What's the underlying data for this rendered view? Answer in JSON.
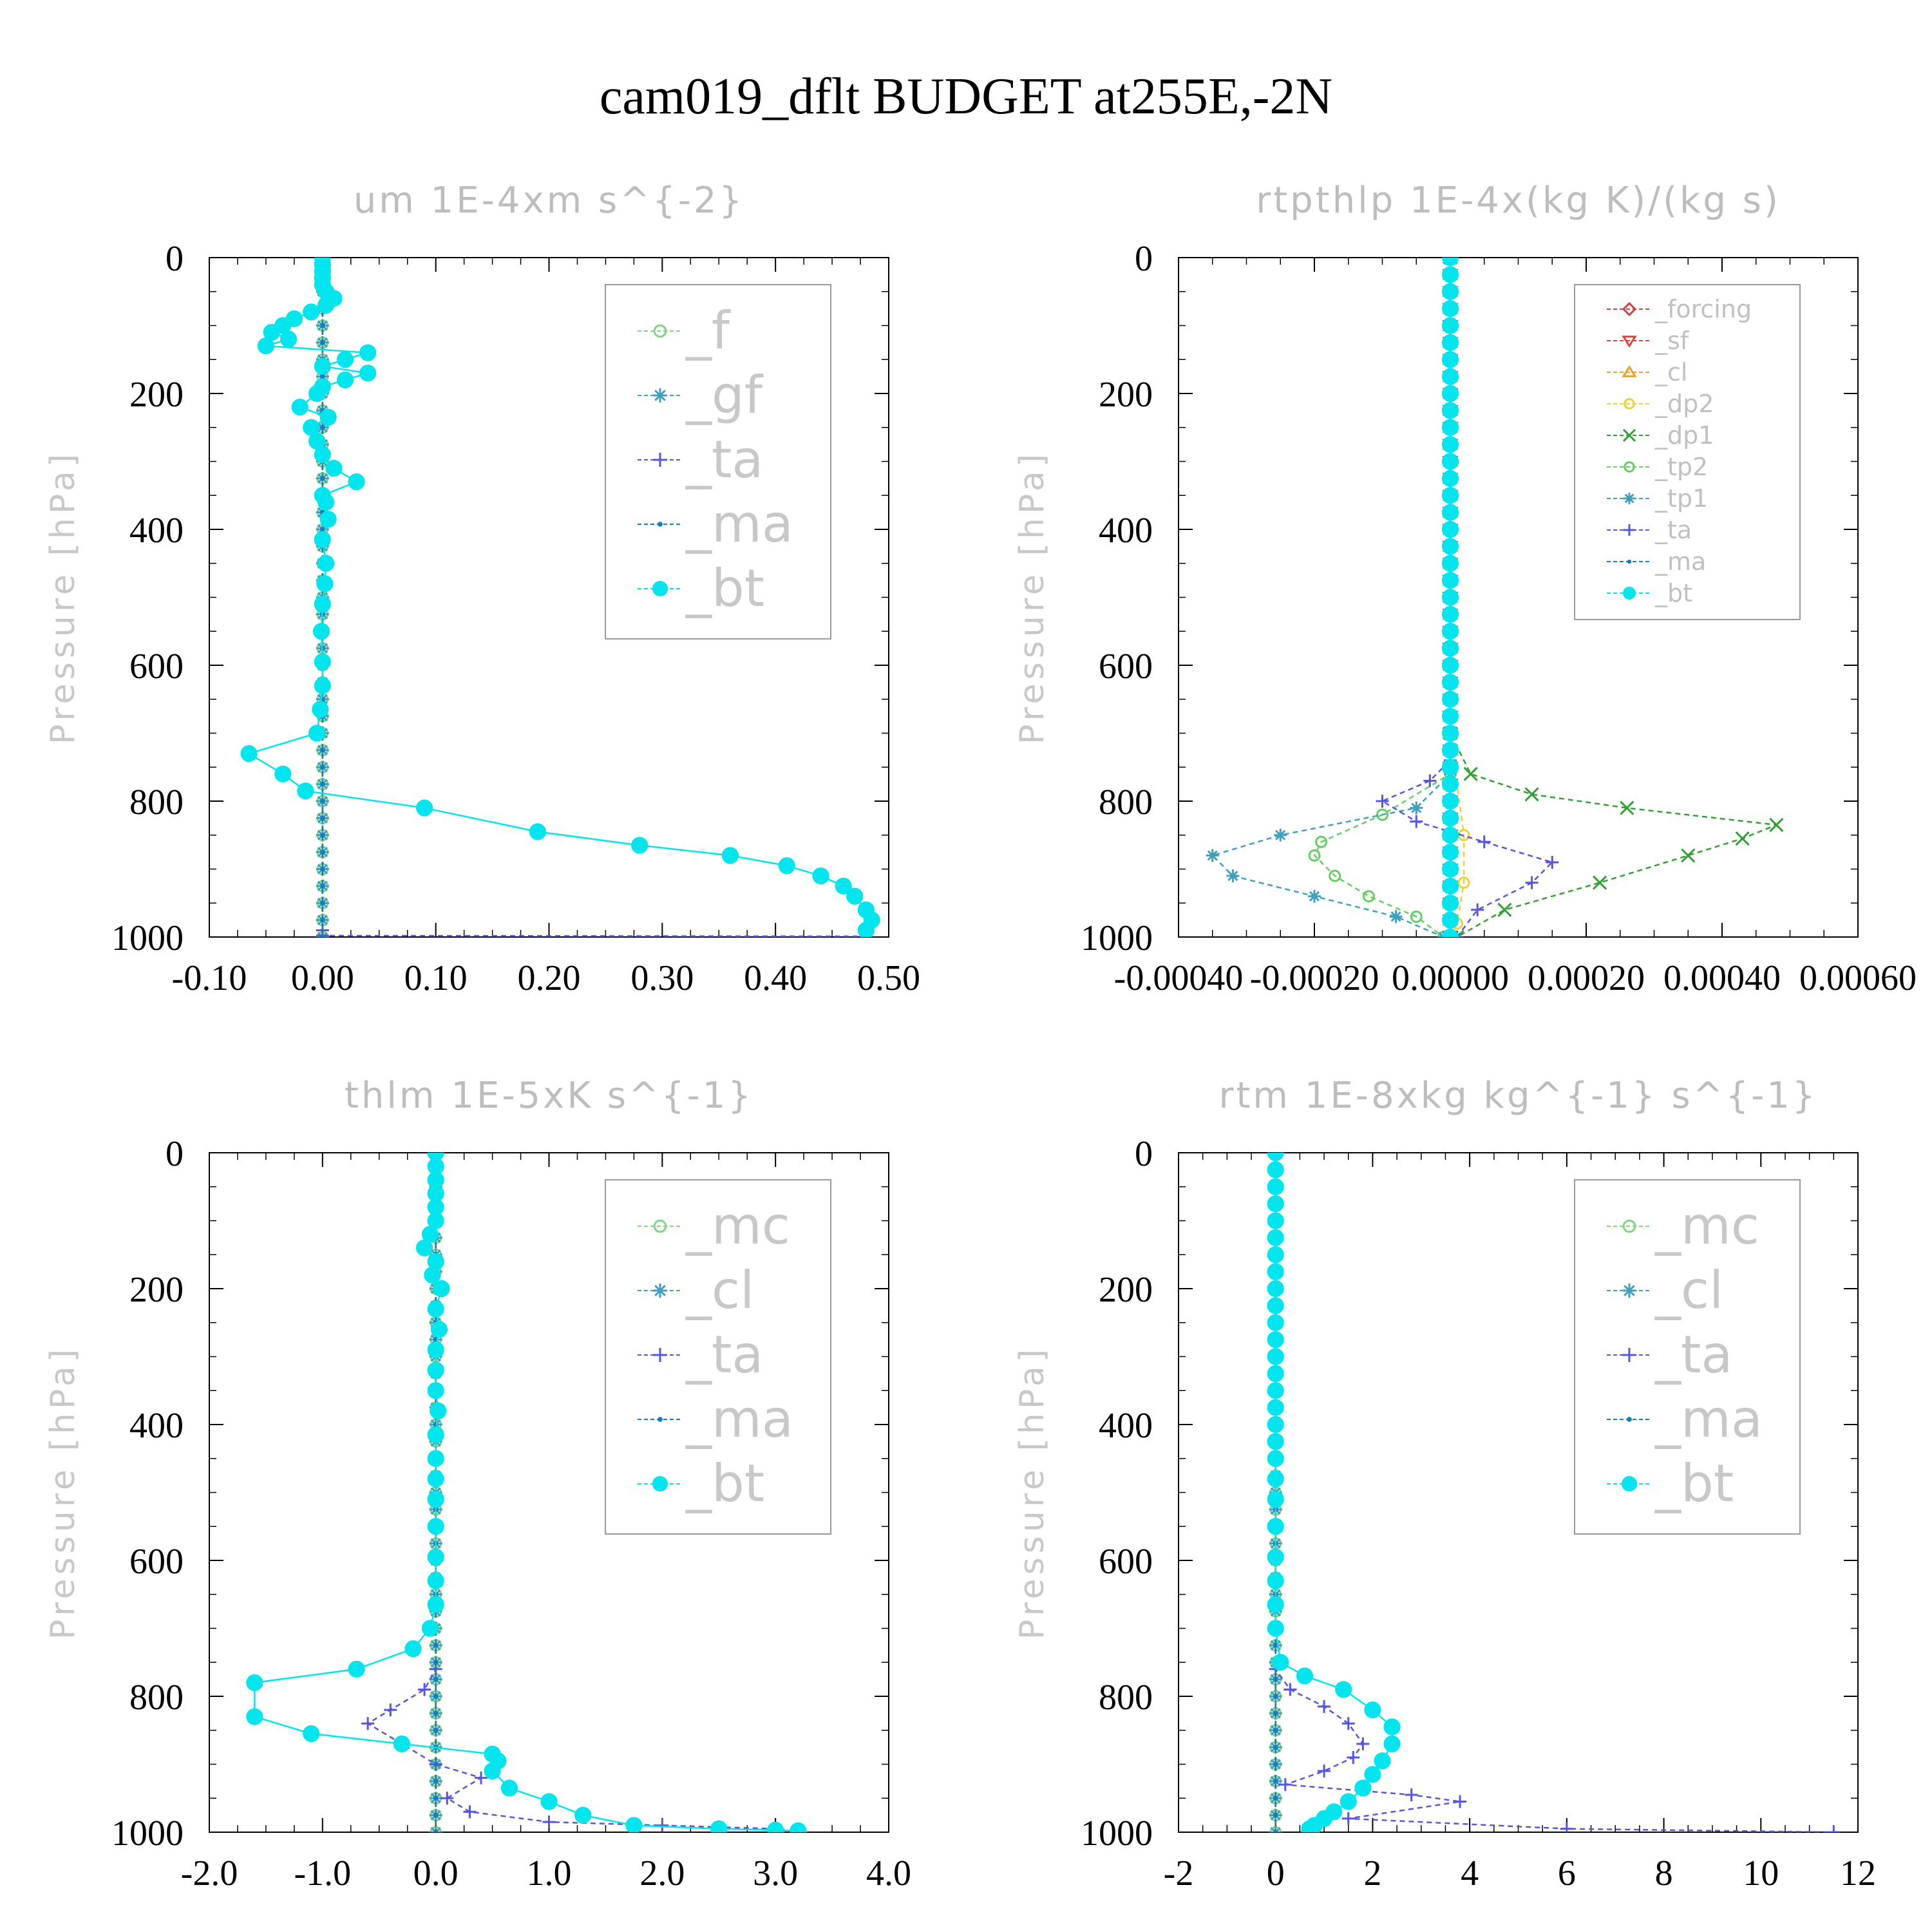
{
  "title": "cam019_dflt  BUDGET at255E,-2N",
  "colors": {
    "f": "#7fd77f",
    "gf": "#3f9fbf",
    "ta": "#5555dd",
    "ma": "#0f7fbf",
    "bt": "#00e5ee",
    "mc": "#7fd77f",
    "cl": "#3f9fbf",
    "forcing": "#d04040",
    "sf": "#e04040",
    "cl2": "#f0a020",
    "dp2": "#f0d030",
    "dp1": "#30a030",
    "tp2": "#60d060",
    "tp1": "#3f9fbf"
  },
  "chart_data": [
    {
      "type": "line",
      "title": "um  1E-4xm s^{-2}",
      "ylabel": "Pressure [hPa]",
      "xlim": [
        -0.1,
        0.5
      ],
      "ylim": [
        1000,
        0
      ],
      "xticks": [
        "-0.10",
        "0.00",
        "0.10",
        "0.20",
        "0.30",
        "0.40",
        "0.50"
      ],
      "yticks": [
        "0",
        "200",
        "400",
        "600",
        "800",
        "1000"
      ],
      "legend_size": "big",
      "legend": [
        "_f",
        "_gf",
        "_ta",
        "_ma",
        "_bt"
      ],
      "series": [
        {
          "name": "_f",
          "key": "f",
          "marker": "circle-open",
          "x": [
            0,
            0
          ],
          "y": [
            0,
            1000
          ]
        },
        {
          "name": "_gf",
          "key": "gf",
          "marker": "star",
          "x": [
            0,
            0
          ],
          "y": [
            0,
            1000
          ]
        },
        {
          "name": "_ta",
          "key": "ta",
          "marker": "plus",
          "x": [
            0,
            0,
            0,
            0.48
          ],
          "y": [
            0,
            990,
            998,
            999
          ]
        },
        {
          "name": "_ma",
          "key": "ma",
          "marker": "dot",
          "x": [
            0,
            0
          ],
          "y": [
            0,
            1000
          ]
        },
        {
          "name": "_bt",
          "key": "bt",
          "marker": "circle-filled",
          "x": [
            0,
            0,
            0,
            0,
            0,
            0.003,
            0.01,
            0.003,
            -0.01,
            -0.025,
            -0.035,
            -0.045,
            -0.03,
            -0.05,
            0.04,
            0.02,
            0.0,
            0.04,
            0.02,
            0.0,
            -0.005,
            -0.02,
            0.005,
            -0.01,
            -0.005,
            0.0,
            0.01,
            0.03,
            0.0,
            0.003,
            0.005,
            0.0,
            0.003,
            0.002,
            0.0,
            -0.001,
            0.0,
            0.0,
            -0.002,
            -0.005,
            -0.065,
            -0.035,
            -0.015,
            0.09,
            0.19,
            0.28,
            0.36,
            0.41,
            0.44,
            0.46,
            0.47,
            0.48,
            0.485,
            0.48
          ],
          "y": [
            0,
            10,
            20,
            30,
            40,
            50,
            60,
            70,
            80,
            90,
            100,
            110,
            120,
            130,
            140,
            150,
            160,
            170,
            180,
            190,
            200,
            220,
            235,
            250,
            270,
            290,
            310,
            330,
            350,
            360,
            385,
            415,
            450,
            480,
            510,
            550,
            595,
            630,
            665,
            700,
            730,
            760,
            785,
            810,
            845,
            865,
            880,
            895,
            910,
            925,
            940,
            960,
            975,
            990
          ]
        }
      ]
    },
    {
      "type": "line",
      "title": "rtpthlp  1E-4x(kg K)/(kg s)",
      "ylabel": "Pressure [hPa]",
      "xlim": [
        -0.0004,
        0.0006
      ],
      "ylim": [
        1000,
        0
      ],
      "xticks": [
        "-0.00040",
        "-0.00020",
        "0.00000",
        "0.00020",
        "0.00040",
        "0.00060"
      ],
      "yticks": [
        "0",
        "200",
        "400",
        "600",
        "800",
        "1000"
      ],
      "legend_size": "small",
      "legend": [
        "_forcing",
        "_sf",
        "_cl",
        "_dp2",
        "_dp1",
        "_tp2",
        "_tp1",
        "_ta",
        "_ma",
        "_bt"
      ],
      "series": [
        {
          "name": "_forcing",
          "key": "forcing",
          "marker": "diamond",
          "x": [
            0,
            0
          ],
          "y": [
            0,
            1000
          ]
        },
        {
          "name": "_sf",
          "key": "sf",
          "marker": "tri-down",
          "x": [
            0,
            0
          ],
          "y": [
            0,
            1000
          ]
        },
        {
          "name": "_cl",
          "key": "cl2",
          "marker": "tri-up",
          "x": [
            0,
            0
          ],
          "y": [
            0,
            1000
          ]
        },
        {
          "name": "_dp2",
          "key": "dp2",
          "marker": "circle-open",
          "x": [
            0,
            0,
            2e-05,
            2e-05,
            1e-05,
            0
          ],
          "y": [
            0,
            700,
            850,
            920,
            980,
            1000
          ]
        },
        {
          "name": "_dp1",
          "key": "dp1",
          "marker": "x",
          "x": [
            0,
            0,
            3e-05,
            0.00012,
            0.00026,
            0.00048,
            0.00043,
            0.00035,
            0.00022,
            8e-05,
            1e-05
          ],
          "y": [
            0,
            700,
            760,
            790,
            810,
            835,
            855,
            880,
            920,
            960,
            1000
          ]
        },
        {
          "name": "_tp2",
          "key": "tp2",
          "marker": "circle-open",
          "x": [
            0,
            0,
            -0.0001,
            -0.00019,
            -0.0002,
            -0.00017,
            -0.00012,
            -5e-05,
            -1e-05
          ],
          "y": [
            0,
            760,
            820,
            860,
            880,
            910,
            940,
            970,
            1000
          ]
        },
        {
          "name": "_tp1",
          "key": "tp1",
          "marker": "star",
          "x": [
            0,
            0,
            -5e-05,
            -0.00025,
            -0.00035,
            -0.00032,
            -0.0002,
            -8e-05,
            -1e-05
          ],
          "y": [
            0,
            760,
            810,
            850,
            880,
            910,
            940,
            970,
            1000
          ]
        },
        {
          "name": "_ta",
          "key": "ta",
          "marker": "plus",
          "x": [
            0,
            0,
            -3e-05,
            -0.0001,
            -5e-05,
            5e-05,
            0.00015,
            0.00012,
            4e-05,
            1e-05
          ],
          "y": [
            0,
            740,
            770,
            800,
            830,
            860,
            890,
            920,
            960,
            1000
          ]
        },
        {
          "name": "_ma",
          "key": "ma",
          "marker": "dot",
          "x": [
            0,
            0
          ],
          "y": [
            0,
            1000
          ]
        },
        {
          "name": "_bt",
          "key": "bt",
          "marker": "circle-filled",
          "x": [
            0,
            0,
            0,
            0,
            0,
            0,
            0,
            0,
            0,
            0,
            0,
            0,
            0,
            0,
            0,
            0,
            0,
            0,
            0,
            0,
            0,
            0,
            0,
            0,
            0,
            0,
            0,
            0,
            0,
            0,
            0,
            0,
            0,
            0,
            0,
            0,
            0,
            0,
            0,
            0,
            0
          ],
          "y": [
            0,
            25,
            50,
            75,
            100,
            125,
            150,
            175,
            200,
            225,
            250,
            275,
            300,
            325,
            350,
            375,
            400,
            425,
            450,
            475,
            500,
            525,
            550,
            575,
            600,
            625,
            650,
            675,
            700,
            725,
            750,
            775,
            800,
            825,
            850,
            875,
            900,
            925,
            950,
            975,
            1000
          ]
        }
      ]
    },
    {
      "type": "line",
      "title": "thlm  1E-5xK s^{-1}",
      "ylabel": "Pressure [hPa]",
      "xlim": [
        -2.0,
        4.0
      ],
      "ylim": [
        1000,
        0
      ],
      "xticks": [
        "-2.0",
        "-1.0",
        "0.0",
        "1.0",
        "2.0",
        "3.0",
        "4.0"
      ],
      "yticks": [
        "0",
        "200",
        "400",
        "600",
        "800",
        "1000"
      ],
      "legend_size": "big",
      "legend": [
        "_mc",
        "_cl",
        "_ta",
        "_ma",
        "_bt"
      ],
      "series": [
        {
          "name": "_mc",
          "key": "mc",
          "marker": "circle-open",
          "x": [
            0,
            0
          ],
          "y": [
            0,
            1000
          ]
        },
        {
          "name": "_cl",
          "key": "cl",
          "marker": "star",
          "x": [
            0,
            0
          ],
          "y": [
            0,
            1000
          ]
        },
        {
          "name": "_ta",
          "key": "ta",
          "marker": "plus",
          "x": [
            0,
            0,
            -0.1,
            -0.4,
            -0.6,
            -0.3,
            0.0,
            0.4,
            0.1,
            0.3,
            1.0,
            2.0,
            3.0,
            3.2
          ],
          "y": [
            0,
            760,
            790,
            820,
            840,
            870,
            900,
            920,
            950,
            970,
            985,
            990,
            995,
            1000
          ]
        },
        {
          "name": "_ma",
          "key": "ma",
          "marker": "dot",
          "x": [
            0,
            0
          ],
          "y": [
            0,
            1000
          ]
        },
        {
          "name": "_bt",
          "key": "bt",
          "marker": "circle-filled",
          "x": [
            0,
            0,
            0,
            0,
            0,
            0,
            -0.05,
            -0.1,
            0.0,
            -0.03,
            0.05,
            0.0,
            0.03,
            0.0,
            0.0,
            0.0,
            0.02,
            0.0,
            0.0,
            0.0,
            0.0,
            0.0,
            0.0,
            0.0,
            0.0,
            -0.05,
            -0.2,
            -0.7,
            -1.6,
            -1.6,
            -1.1,
            -0.3,
            0.5,
            0.55,
            0.5,
            0.65,
            1.0,
            1.3,
            1.75,
            2.5,
            3.0,
            3.2,
            3.2
          ],
          "y": [
            0,
            20,
            40,
            60,
            80,
            100,
            120,
            140,
            160,
            180,
            200,
            230,
            260,
            290,
            320,
            350,
            380,
            415,
            450,
            480,
            510,
            550,
            595,
            630,
            665,
            700,
            730,
            760,
            780,
            830,
            855,
            870,
            885,
            895,
            910,
            935,
            955,
            975,
            990,
            995,
            997,
            998,
            1000
          ]
        }
      ]
    },
    {
      "type": "line",
      "title": "rtm  1E-8xkg kg^{-1} s^{-1}",
      "ylabel": "Pressure [hPa]",
      "xlim": [
        -2,
        12
      ],
      "ylim": [
        1000,
        0
      ],
      "xticks": [
        "-2",
        "0",
        "2",
        "4",
        "6",
        "8",
        "10",
        "12"
      ],
      "yticks": [
        "0",
        "200",
        "400",
        "600",
        "800",
        "1000"
      ],
      "legend_size": "big",
      "legend": [
        "_mc",
        "_cl",
        "_ta",
        "_ma",
        "_bt"
      ],
      "series": [
        {
          "name": "_mc",
          "key": "mc",
          "marker": "circle-open",
          "x": [
            0,
            0
          ],
          "y": [
            0,
            1000
          ]
        },
        {
          "name": "_cl",
          "key": "cl",
          "marker": "star",
          "x": [
            0,
            0
          ],
          "y": [
            0,
            1000
          ]
        },
        {
          "name": "_ta",
          "key": "ta",
          "marker": "plus",
          "x": [
            0,
            0,
            0.3,
            1.0,
            1.5,
            1.8,
            1.6,
            1.0,
            0.2,
            2.8,
            3.8,
            1.5,
            6.0,
            11.5
          ],
          "y": [
            0,
            760,
            790,
            815,
            840,
            870,
            890,
            910,
            930,
            945,
            955,
            980,
            995,
            1000
          ]
        },
        {
          "name": "_ma",
          "key": "ma",
          "marker": "dot",
          "x": [
            0,
            0
          ],
          "y": [
            0,
            1000
          ]
        },
        {
          "name": "_bt",
          "key": "bt",
          "marker": "circle-filled",
          "x": [
            0,
            0,
            0,
            0,
            0,
            0,
            0,
            0,
            0,
            0,
            0,
            0,
            0,
            0,
            0,
            0,
            0,
            0,
            0,
            0,
            0,
            0,
            0,
            0,
            0,
            0,
            0.1,
            0.6,
            1.4,
            2.0,
            2.4,
            2.4,
            2.2,
            2.0,
            1.8,
            1.5,
            1.2,
            1.0,
            0.8,
            0.7,
            0.7,
            0.7
          ],
          "y": [
            0,
            25,
            50,
            75,
            100,
            125,
            150,
            175,
            200,
            225,
            250,
            275,
            300,
            325,
            350,
            375,
            400,
            425,
            450,
            480,
            510,
            550,
            595,
            630,
            665,
            700,
            750,
            770,
            790,
            820,
            845,
            870,
            895,
            915,
            935,
            955,
            970,
            980,
            990,
            995,
            998,
            1000
          ]
        }
      ]
    }
  ]
}
